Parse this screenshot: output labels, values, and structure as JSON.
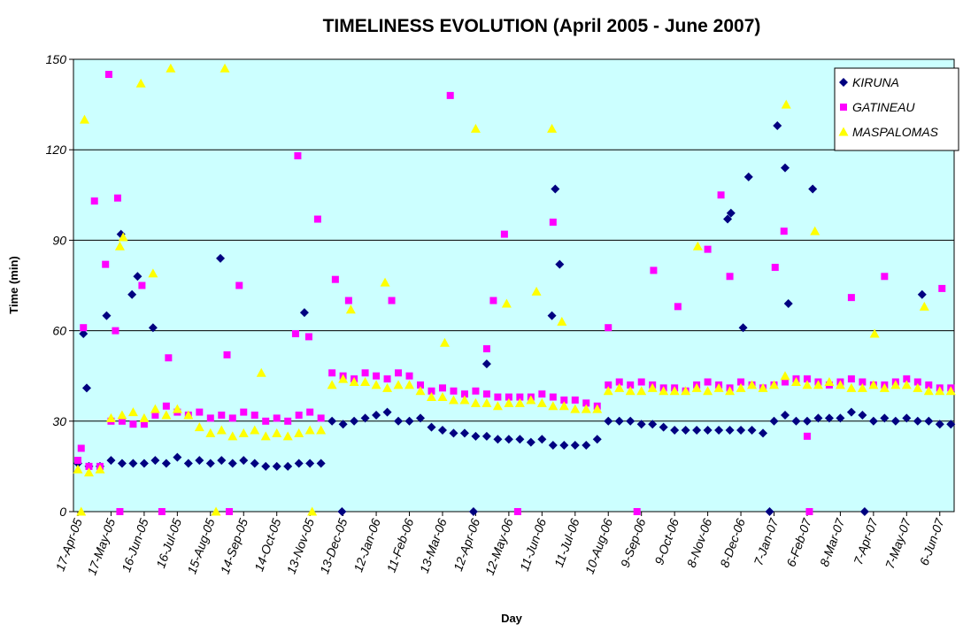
{
  "chart_data": {
    "type": "scatter",
    "title": "TIMELINESS EVOLUTION (April 2005 - June 2007)",
    "x_label": "Day",
    "y_label": "Time (min)",
    "xlim": [
      "2005-04-13",
      "2007-06-19"
    ],
    "xticks": [
      {
        "value": "2005-04-17",
        "label": "17-Apr-05"
      },
      {
        "value": "2005-05-17",
        "label": "17-May-05"
      },
      {
        "value": "2005-06-16",
        "label": "16-Jun-05"
      },
      {
        "value": "2005-07-16",
        "label": "16-Jul-05"
      },
      {
        "value": "2005-08-15",
        "label": "15-Aug-05"
      },
      {
        "value": "2005-09-14",
        "label": "14-Sep-05"
      },
      {
        "value": "2005-10-14",
        "label": "14-Oct-05"
      },
      {
        "value": "2005-11-13",
        "label": "13-Nov-05"
      },
      {
        "value": "2005-12-13",
        "label": "13-Dec-05"
      },
      {
        "value": "2006-01-12",
        "label": "12-Jan-06"
      },
      {
        "value": "2006-02-11",
        "label": "11-Feb-06"
      },
      {
        "value": "2006-03-13",
        "label": "13-Mar-06"
      },
      {
        "value": "2006-04-12",
        "label": "12-Apr-06"
      },
      {
        "value": "2006-05-12",
        "label": "12-May-06"
      },
      {
        "value": "2006-06-11",
        "label": "11-Jun-06"
      },
      {
        "value": "2006-07-11",
        "label": "11-Jul-06"
      },
      {
        "value": "2006-08-10",
        "label": "10-Aug-06"
      },
      {
        "value": "2006-09-09",
        "label": "9-Sep-06"
      },
      {
        "value": "2006-10-09",
        "label": "9-Oct-06"
      },
      {
        "value": "2006-11-08",
        "label": "8-Nov-06"
      },
      {
        "value": "2006-12-08",
        "label": "8-Dec-06"
      },
      {
        "value": "2007-01-07",
        "label": "7-Jan-07"
      },
      {
        "value": "2007-02-06",
        "label": "6-Feb-07"
      },
      {
        "value": "2007-03-08",
        "label": "8-Mar-07"
      },
      {
        "value": "2007-04-07",
        "label": "7-Apr-07"
      },
      {
        "value": "2007-05-07",
        "label": "7-May-07"
      },
      {
        "value": "2007-06-06",
        "label": "6-Jun-07"
      }
    ],
    "ylim": [
      0,
      150
    ],
    "yticks": [
      0,
      30,
      60,
      90,
      120,
      150
    ],
    "grid": true,
    "legend": "upper right",
    "series": [
      {
        "name": "KIRUNA",
        "color": "#000080",
        "marker": "diamond",
        "x": [
          "2005-04-17",
          "2005-04-27",
          "2005-05-07",
          "2005-05-17",
          "2005-05-27",
          "2005-06-06",
          "2005-06-16",
          "2005-06-26",
          "2005-07-06",
          "2005-07-16",
          "2005-07-26",
          "2005-08-05",
          "2005-08-15",
          "2005-08-25",
          "2005-09-04",
          "2005-09-14",
          "2005-09-24",
          "2005-10-04",
          "2005-10-14",
          "2005-10-24",
          "2005-11-03",
          "2005-11-13",
          "2005-11-23",
          "2005-12-03",
          "2005-12-13",
          "2005-12-23",
          "2006-01-02",
          "2006-01-12",
          "2006-01-22",
          "2006-02-01",
          "2006-02-11",
          "2006-02-21",
          "2006-03-03",
          "2006-03-13",
          "2006-03-23",
          "2006-04-02",
          "2006-04-12",
          "2006-04-22",
          "2006-05-02",
          "2006-05-12",
          "2006-05-22",
          "2006-06-01",
          "2006-06-11",
          "2006-06-21",
          "2006-07-01",
          "2006-07-11",
          "2006-07-21",
          "2006-07-31",
          "2006-08-10",
          "2006-08-20",
          "2006-08-30",
          "2006-09-09",
          "2006-09-19",
          "2006-09-29",
          "2006-10-09",
          "2006-10-19",
          "2006-10-29",
          "2006-11-08",
          "2006-11-18",
          "2006-11-28",
          "2006-12-08",
          "2006-12-18",
          "2006-12-28",
          "2007-01-07",
          "2007-01-17",
          "2007-01-27",
          "2007-02-06",
          "2007-02-16",
          "2007-02-26",
          "2007-03-08",
          "2007-03-18",
          "2007-03-28",
          "2007-04-07",
          "2007-04-17",
          "2007-04-27",
          "2007-05-07",
          "2007-05-17",
          "2007-05-27",
          "2007-06-06",
          "2007-06-16",
          "2005-04-22",
          "2005-04-25",
          "2005-05-13",
          "2005-05-26",
          "2005-06-10",
          "2005-06-05",
          "2005-06-24",
          "2005-08-24",
          "2005-11-08",
          "2005-12-12",
          "2006-04-22",
          "2006-06-23",
          "2006-06-27",
          "2006-06-20",
          "2006-11-26",
          "2006-11-29",
          "2006-12-10",
          "2006-12-15",
          "2007-01-03",
          "2007-01-10",
          "2007-01-17",
          "2007-01-20",
          "2007-02-11",
          "2007-03-30",
          "2007-05-21",
          "2006-04-10"
        ],
        "values": [
          16,
          15,
          15,
          17,
          16,
          16,
          16,
          17,
          16,
          18,
          16,
          17,
          16,
          17,
          16,
          17,
          16,
          15,
          15,
          15,
          16,
          16,
          16,
          30,
          29,
          30,
          31,
          32,
          33,
          30,
          30,
          31,
          28,
          27,
          26,
          26,
          25,
          25,
          24,
          24,
          24,
          23,
          24,
          22,
          22,
          22,
          22,
          24,
          30,
          30,
          30,
          29,
          29,
          28,
          27,
          27,
          27,
          27,
          27,
          27,
          27,
          27,
          26,
          30,
          32,
          30,
          30,
          31,
          31,
          31,
          33,
          32,
          30,
          31,
          30,
          31,
          30,
          30,
          29,
          29,
          59,
          41,
          65,
          92,
          78,
          72,
          61,
          84,
          66,
          0,
          49,
          107,
          82,
          65,
          97,
          99,
          61,
          111,
          0,
          128,
          114,
          69,
          107,
          0,
          72,
          0
        ]
      },
      {
        "name": "GATINEAU",
        "color": "#ff00ff",
        "marker": "square",
        "x": [
          "2005-04-17",
          "2005-04-27",
          "2005-05-07",
          "2005-05-17",
          "2005-05-27",
          "2005-06-06",
          "2005-06-16",
          "2005-06-26",
          "2005-07-06",
          "2005-07-16",
          "2005-07-26",
          "2005-08-05",
          "2005-08-15",
          "2005-08-25",
          "2005-09-04",
          "2005-09-14",
          "2005-09-24",
          "2005-10-04",
          "2005-10-14",
          "2005-10-24",
          "2005-11-03",
          "2005-11-13",
          "2005-11-23",
          "2005-12-03",
          "2005-12-13",
          "2005-12-23",
          "2006-01-02",
          "2006-01-12",
          "2006-01-22",
          "2006-02-01",
          "2006-02-11",
          "2006-02-21",
          "2006-03-03",
          "2006-03-13",
          "2006-03-23",
          "2006-04-02",
          "2006-04-12",
          "2006-04-22",
          "2006-05-02",
          "2006-05-12",
          "2006-05-22",
          "2006-06-01",
          "2006-06-11",
          "2006-06-21",
          "2006-07-01",
          "2006-07-11",
          "2006-07-21",
          "2006-07-31",
          "2006-08-10",
          "2006-08-20",
          "2006-08-30",
          "2006-09-09",
          "2006-09-19",
          "2006-09-29",
          "2006-10-09",
          "2006-10-19",
          "2006-10-29",
          "2006-11-08",
          "2006-11-18",
          "2006-11-28",
          "2006-12-08",
          "2006-12-18",
          "2006-12-28",
          "2007-01-07",
          "2007-01-17",
          "2007-01-27",
          "2007-02-06",
          "2007-02-16",
          "2007-02-26",
          "2007-03-08",
          "2007-03-18",
          "2007-03-28",
          "2007-04-07",
          "2007-04-17",
          "2007-04-27",
          "2007-05-07",
          "2007-05-17",
          "2007-05-27",
          "2007-06-06",
          "2007-06-16",
          "2005-04-20",
          "2005-04-22",
          "2005-05-02",
          "2005-05-12",
          "2005-05-15",
          "2005-05-23",
          "2005-05-21",
          "2005-05-25",
          "2005-06-14",
          "2005-07-02",
          "2005-07-08",
          "2005-08-30",
          "2005-09-10",
          "2005-09-01",
          "2005-11-02",
          "2005-11-20",
          "2005-10-31",
          "2005-11-12",
          "2005-12-06",
          "2005-12-18",
          "2006-01-26",
          "2006-03-20",
          "2006-04-22",
          "2006-04-28",
          "2006-05-08",
          "2006-05-20",
          "2006-06-21",
          "2006-08-10",
          "2006-09-05",
          "2006-09-20",
          "2006-10-12",
          "2006-11-08",
          "2006-11-20",
          "2006-11-28",
          "2007-01-08",
          "2007-01-16",
          "2007-02-06",
          "2007-02-08",
          "2007-03-18",
          "2007-04-17",
          "2007-06-08"
        ],
        "values": [
          17,
          15,
          15,
          30,
          30,
          29,
          29,
          32,
          35,
          33,
          32,
          33,
          31,
          32,
          31,
          33,
          32,
          30,
          31,
          30,
          32,
          33,
          31,
          46,
          45,
          44,
          46,
          45,
          44,
          46,
          45,
          42,
          40,
          41,
          40,
          39,
          40,
          39,
          38,
          38,
          38,
          38,
          39,
          38,
          37,
          37,
          36,
          35,
          42,
          43,
          42,
          43,
          42,
          41,
          41,
          40,
          42,
          43,
          42,
          41,
          43,
          42,
          41,
          42,
          43,
          44,
          44,
          43,
          42,
          43,
          44,
          43,
          42,
          42,
          43,
          44,
          43,
          42,
          41,
          41,
          21,
          61,
          103,
          82,
          145,
          104,
          60,
          0,
          75,
          0,
          51,
          52,
          75,
          0,
          118,
          97,
          59,
          58,
          77,
          70,
          70,
          138,
          54,
          70,
          92,
          0,
          96,
          61,
          0,
          80,
          68,
          87,
          105,
          78,
          81,
          93,
          25,
          0,
          71,
          78,
          74
        ]
      },
      {
        "name": "MASPALOMAS",
        "color": "#ffff00",
        "marker": "triangle",
        "x": [
          "2005-04-17",
          "2005-04-27",
          "2005-05-07",
          "2005-05-17",
          "2005-05-27",
          "2005-06-06",
          "2005-06-16",
          "2005-06-26",
          "2005-07-06",
          "2005-07-16",
          "2005-07-26",
          "2005-08-05",
          "2005-08-15",
          "2005-08-25",
          "2005-09-04",
          "2005-09-14",
          "2005-09-24",
          "2005-10-04",
          "2005-10-14",
          "2005-10-24",
          "2005-11-03",
          "2005-11-13",
          "2005-11-23",
          "2005-12-03",
          "2005-12-13",
          "2005-12-23",
          "2006-01-02",
          "2006-01-12",
          "2006-01-22",
          "2006-02-01",
          "2006-02-11",
          "2006-02-21",
          "2006-03-03",
          "2006-03-13",
          "2006-03-23",
          "2006-04-02",
          "2006-04-12",
          "2006-04-22",
          "2006-05-02",
          "2006-05-12",
          "2006-05-22",
          "2006-06-01",
          "2006-06-11",
          "2006-06-21",
          "2006-07-01",
          "2006-07-11",
          "2006-07-21",
          "2006-07-31",
          "2006-08-10",
          "2006-08-20",
          "2006-08-30",
          "2006-09-09",
          "2006-09-19",
          "2006-09-29",
          "2006-10-09",
          "2006-10-19",
          "2006-10-29",
          "2006-11-08",
          "2006-11-18",
          "2006-11-28",
          "2006-12-08",
          "2006-12-18",
          "2006-12-28",
          "2007-01-07",
          "2007-01-17",
          "2007-01-27",
          "2007-02-06",
          "2007-02-16",
          "2007-02-26",
          "2007-03-08",
          "2007-03-18",
          "2007-03-28",
          "2007-04-07",
          "2007-04-17",
          "2007-04-27",
          "2007-05-07",
          "2007-05-17",
          "2007-05-27",
          "2007-06-06",
          "2007-06-16",
          "2005-04-20",
          "2005-04-23",
          "2005-05-25",
          "2005-05-28",
          "2005-06-13",
          "2005-06-24",
          "2005-07-10",
          "2005-08-28",
          "2005-08-20",
          "2005-09-30",
          "2005-11-15",
          "2005-12-20",
          "2006-01-20",
          "2006-03-15",
          "2006-04-12",
          "2006-05-10",
          "2006-06-06",
          "2006-06-20",
          "2006-06-29",
          "2006-10-30",
          "2007-01-18",
          "2007-02-13",
          "2007-04-08",
          "2007-05-23"
        ],
        "values": [
          14,
          13,
          14,
          31,
          32,
          33,
          31,
          34,
          32,
          34,
          32,
          28,
          26,
          27,
          25,
          26,
          27,
          25,
          26,
          25,
          26,
          27,
          27,
          42,
          44,
          43,
          43,
          42,
          41,
          42,
          42,
          40,
          38,
          38,
          37,
          37,
          36,
          36,
          35,
          36,
          36,
          37,
          36,
          35,
          35,
          34,
          34,
          34,
          40,
          41,
          40,
          40,
          41,
          40,
          40,
          40,
          41,
          40,
          41,
          40,
          41,
          42,
          41,
          42,
          45,
          43,
          42,
          42,
          43,
          42,
          41,
          41,
          42,
          41,
          42,
          42,
          41,
          40,
          40,
          40,
          0,
          130,
          88,
          91,
          142,
          79,
          147,
          147,
          0,
          46,
          0,
          67,
          76,
          56,
          127,
          69,
          73,
          127,
          63,
          88,
          135,
          93,
          59,
          68
        ]
      }
    ]
  }
}
